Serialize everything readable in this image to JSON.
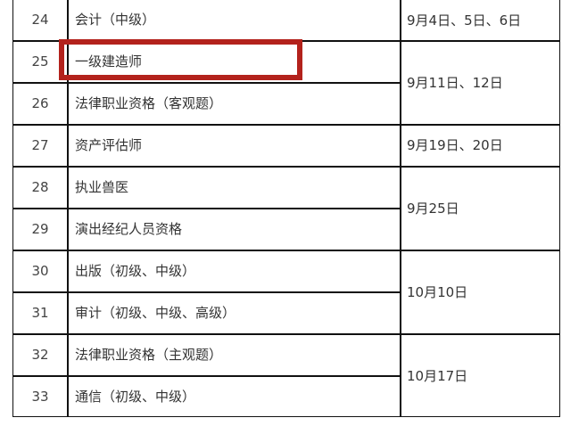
{
  "rows": [
    {
      "no": "24",
      "name": "会计（中级）"
    },
    {
      "no": "25",
      "name": "一级建造师"
    },
    {
      "no": "26",
      "name": "法律职业资格（客观题）"
    },
    {
      "no": "27",
      "name": "资产评估师"
    },
    {
      "no": "28",
      "name": "执业兽医"
    },
    {
      "no": "29",
      "name": "演出经纪人员资格"
    },
    {
      "no": "30",
      "name": "出版（初级、中级）"
    },
    {
      "no": "31",
      "name": "审计（初级、中级、高级）"
    },
    {
      "no": "32",
      "name": "法律职业资格（主观题）"
    },
    {
      "no": "33",
      "name": "通信（初级、中级）"
    }
  ],
  "dates": [
    "9月4日、5日、6日",
    "9月11日、12日",
    "9月19日、20日",
    "9月25日",
    "10月10日",
    "10月17日"
  ],
  "highlight_color": "#b3221c"
}
